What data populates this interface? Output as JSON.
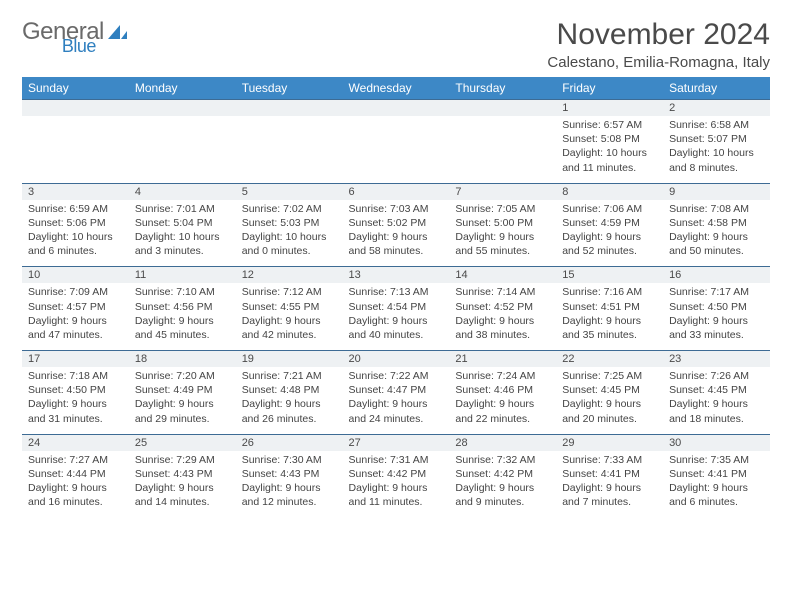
{
  "logo": {
    "main": "General",
    "accent": "Blue"
  },
  "title": "November 2024",
  "location": "Calestano, Emilia-Romagna, Italy",
  "colors": {
    "header_bg": "#3d88c6",
    "header_text": "#ffffff",
    "daynum_bg": "#eef1f3",
    "row_border": "#3d6b94",
    "body_text": "#444444",
    "title_text": "#4a4a4a",
    "logo_gray": "#6a6a6a",
    "logo_blue": "#2f7fbf",
    "page_bg": "#ffffff"
  },
  "days_of_week": [
    "Sunday",
    "Monday",
    "Tuesday",
    "Wednesday",
    "Thursday",
    "Friday",
    "Saturday"
  ],
  "weeks": [
    [
      null,
      null,
      null,
      null,
      null,
      {
        "n": "1",
        "sr": "6:57 AM",
        "ss": "5:08 PM",
        "dl": "10 hours and 11 minutes."
      },
      {
        "n": "2",
        "sr": "6:58 AM",
        "ss": "5:07 PM",
        "dl": "10 hours and 8 minutes."
      }
    ],
    [
      {
        "n": "3",
        "sr": "6:59 AM",
        "ss": "5:06 PM",
        "dl": "10 hours and 6 minutes."
      },
      {
        "n": "4",
        "sr": "7:01 AM",
        "ss": "5:04 PM",
        "dl": "10 hours and 3 minutes."
      },
      {
        "n": "5",
        "sr": "7:02 AM",
        "ss": "5:03 PM",
        "dl": "10 hours and 0 minutes."
      },
      {
        "n": "6",
        "sr": "7:03 AM",
        "ss": "5:02 PM",
        "dl": "9 hours and 58 minutes."
      },
      {
        "n": "7",
        "sr": "7:05 AM",
        "ss": "5:00 PM",
        "dl": "9 hours and 55 minutes."
      },
      {
        "n": "8",
        "sr": "7:06 AM",
        "ss": "4:59 PM",
        "dl": "9 hours and 52 minutes."
      },
      {
        "n": "9",
        "sr": "7:08 AM",
        "ss": "4:58 PM",
        "dl": "9 hours and 50 minutes."
      }
    ],
    [
      {
        "n": "10",
        "sr": "7:09 AM",
        "ss": "4:57 PM",
        "dl": "9 hours and 47 minutes."
      },
      {
        "n": "11",
        "sr": "7:10 AM",
        "ss": "4:56 PM",
        "dl": "9 hours and 45 minutes."
      },
      {
        "n": "12",
        "sr": "7:12 AM",
        "ss": "4:55 PM",
        "dl": "9 hours and 42 minutes."
      },
      {
        "n": "13",
        "sr": "7:13 AM",
        "ss": "4:54 PM",
        "dl": "9 hours and 40 minutes."
      },
      {
        "n": "14",
        "sr": "7:14 AM",
        "ss": "4:52 PM",
        "dl": "9 hours and 38 minutes."
      },
      {
        "n": "15",
        "sr": "7:16 AM",
        "ss": "4:51 PM",
        "dl": "9 hours and 35 minutes."
      },
      {
        "n": "16",
        "sr": "7:17 AM",
        "ss": "4:50 PM",
        "dl": "9 hours and 33 minutes."
      }
    ],
    [
      {
        "n": "17",
        "sr": "7:18 AM",
        "ss": "4:50 PM",
        "dl": "9 hours and 31 minutes."
      },
      {
        "n": "18",
        "sr": "7:20 AM",
        "ss": "4:49 PM",
        "dl": "9 hours and 29 minutes."
      },
      {
        "n": "19",
        "sr": "7:21 AM",
        "ss": "4:48 PM",
        "dl": "9 hours and 26 minutes."
      },
      {
        "n": "20",
        "sr": "7:22 AM",
        "ss": "4:47 PM",
        "dl": "9 hours and 24 minutes."
      },
      {
        "n": "21",
        "sr": "7:24 AM",
        "ss": "4:46 PM",
        "dl": "9 hours and 22 minutes."
      },
      {
        "n": "22",
        "sr": "7:25 AM",
        "ss": "4:45 PM",
        "dl": "9 hours and 20 minutes."
      },
      {
        "n": "23",
        "sr": "7:26 AM",
        "ss": "4:45 PM",
        "dl": "9 hours and 18 minutes."
      }
    ],
    [
      {
        "n": "24",
        "sr": "7:27 AM",
        "ss": "4:44 PM",
        "dl": "9 hours and 16 minutes."
      },
      {
        "n": "25",
        "sr": "7:29 AM",
        "ss": "4:43 PM",
        "dl": "9 hours and 14 minutes."
      },
      {
        "n": "26",
        "sr": "7:30 AM",
        "ss": "4:43 PM",
        "dl": "9 hours and 12 minutes."
      },
      {
        "n": "27",
        "sr": "7:31 AM",
        "ss": "4:42 PM",
        "dl": "9 hours and 11 minutes."
      },
      {
        "n": "28",
        "sr": "7:32 AM",
        "ss": "4:42 PM",
        "dl": "9 hours and 9 minutes."
      },
      {
        "n": "29",
        "sr": "7:33 AM",
        "ss": "4:41 PM",
        "dl": "9 hours and 7 minutes."
      },
      {
        "n": "30",
        "sr": "7:35 AM",
        "ss": "4:41 PM",
        "dl": "9 hours and 6 minutes."
      }
    ]
  ],
  "labels": {
    "sunrise": "Sunrise:",
    "sunset": "Sunset:",
    "daylight": "Daylight:"
  },
  "typography": {
    "title_fontsize": 30,
    "location_fontsize": 15,
    "header_fontsize": 12,
    "daynum_fontsize": 11,
    "cell_fontsize": 10.5
  }
}
